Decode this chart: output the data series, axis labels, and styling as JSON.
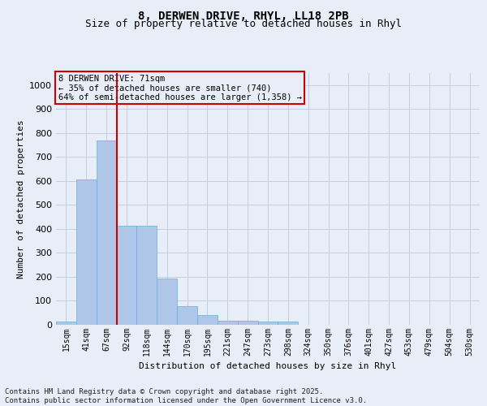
{
  "title_line1": "8, DERWEN DRIVE, RHYL, LL18 2PB",
  "title_line2": "Size of property relative to detached houses in Rhyl",
  "xlabel": "Distribution of detached houses by size in Rhyl",
  "ylabel": "Number of detached properties",
  "categories": [
    "15sqm",
    "41sqm",
    "67sqm",
    "92sqm",
    "118sqm",
    "144sqm",
    "170sqm",
    "195sqm",
    "221sqm",
    "247sqm",
    "273sqm",
    "298sqm",
    "324sqm",
    "350sqm",
    "376sqm",
    "401sqm",
    "427sqm",
    "453sqm",
    "479sqm",
    "504sqm",
    "530sqm"
  ],
  "values": [
    15,
    605,
    770,
    413,
    413,
    192,
    77,
    40,
    18,
    18,
    12,
    12,
    0,
    0,
    0,
    0,
    0,
    0,
    0,
    0,
    0
  ],
  "bar_color": "#aec6e8",
  "bar_edgecolor": "#6baed6",
  "vline_x": 2.5,
  "vline_color": "#cc0000",
  "ylim": [
    0,
    1050
  ],
  "yticks": [
    0,
    100,
    200,
    300,
    400,
    500,
    600,
    700,
    800,
    900,
    1000
  ],
  "annotation_title": "8 DERWEN DRIVE: 71sqm",
  "annotation_line2": "← 35% of detached houses are smaller (740)",
  "annotation_line3": "64% of semi-detached houses are larger (1,358) →",
  "annotation_box_color": "#cc0000",
  "footnote_line1": "Contains HM Land Registry data © Crown copyright and database right 2025.",
  "footnote_line2": "Contains public sector information licensed under the Open Government Licence v3.0.",
  "bg_color": "#e8eef8",
  "plot_bg_color": "#e8eef8",
  "grid_color": "#c5cfe0",
  "title_fontsize": 10,
  "subtitle_fontsize": 9,
  "axis_label_fontsize": 8,
  "tick_fontsize": 7,
  "footnote_fontsize": 6.5,
  "annotation_fontsize": 7.5
}
